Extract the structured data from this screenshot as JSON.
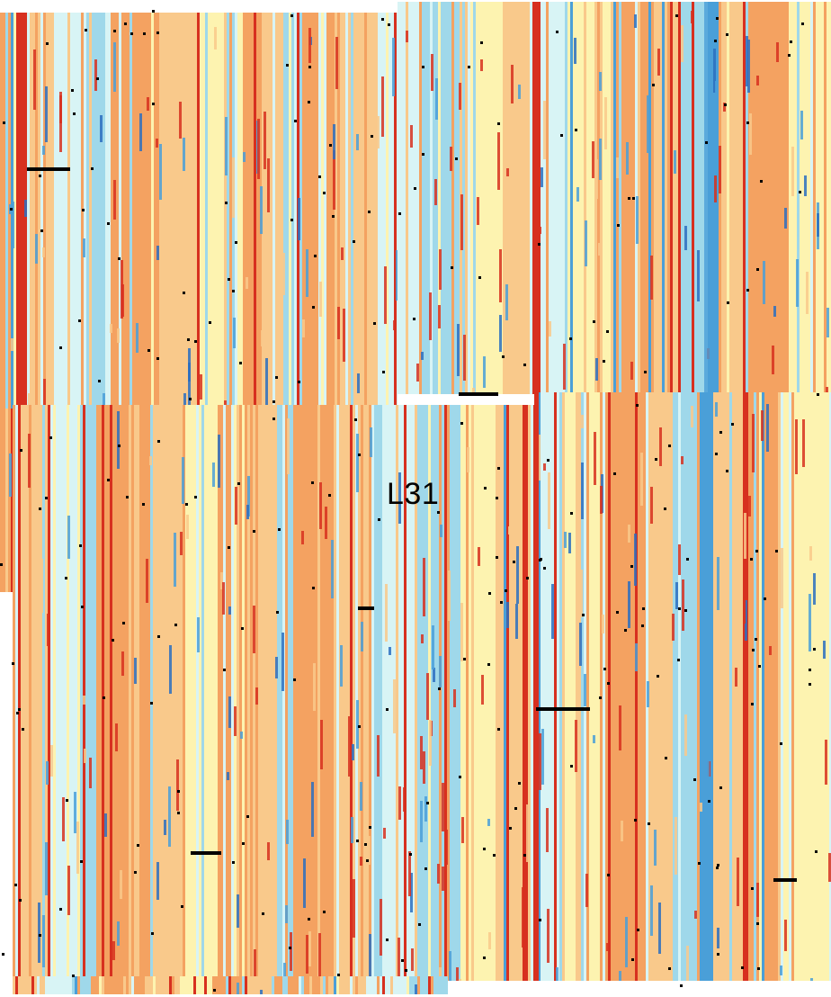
{
  "image": {
    "label": "L31"
  },
  "palette": {
    "red": "#d7301f",
    "orange": "#f4a261",
    "light_orange": "#f9c98b",
    "yellow": "#fdf3b0",
    "pale_cyan": "#d8f4f5",
    "light_blue": "#9fd8ea",
    "blue": "#4a9fd8",
    "dark_blue": "#2c6fc0",
    "dropout": "#000000",
    "background": "#ffffff"
  }
}
